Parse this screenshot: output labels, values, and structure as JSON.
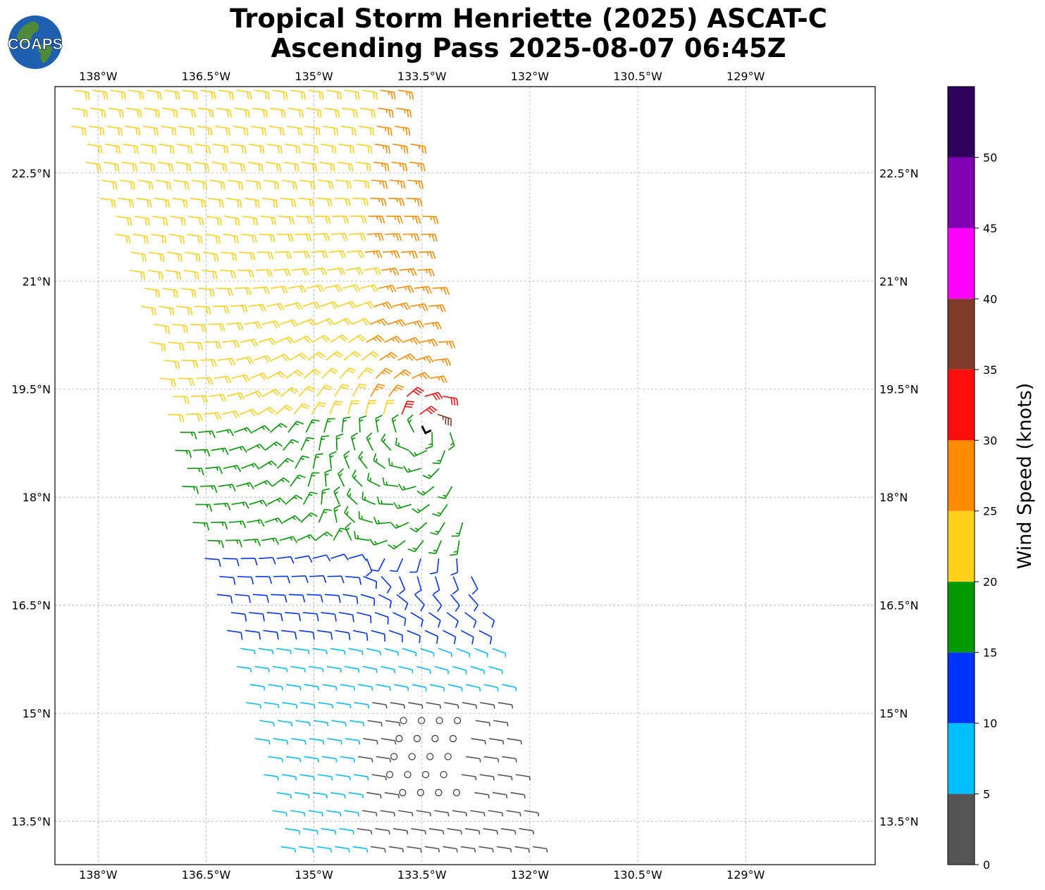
{
  "title": {
    "line1": "Tropical Storm Henriette (2025) ASCAT-C",
    "line2": "Ascending Pass 2025-08-07 06:45Z"
  },
  "logo": {
    "text": "COAPS",
    "icon": "globe-icon",
    "colors": {
      "ocean": "#1f5fb0",
      "land": "#4f8a3a",
      "text": "#ffffff"
    }
  },
  "map": {
    "lon_range": [
      -138.6,
      -127.2
    ],
    "lat_range": [
      12.9,
      23.7
    ],
    "lon_ticks": [
      {
        "value": -138.0,
        "label": "138°W"
      },
      {
        "value": -136.5,
        "label": "136.5°W"
      },
      {
        "value": -135.0,
        "label": "135°W"
      },
      {
        "value": -133.5,
        "label": "133.5°W"
      },
      {
        "value": -132.0,
        "label": "132°W"
      },
      {
        "value": -130.5,
        "label": "130.5°W"
      },
      {
        "value": -129.0,
        "label": "129°W"
      }
    ],
    "lat_ticks": [
      {
        "value": 22.5,
        "label": "22.5°N"
      },
      {
        "value": 21.0,
        "label": "21°N"
      },
      {
        "value": 19.5,
        "label": "19.5°N"
      },
      {
        "value": 18.0,
        "label": "18°N"
      },
      {
        "value": 16.5,
        "label": "16.5°N"
      },
      {
        "value": 15.0,
        "label": "15°N"
      },
      {
        "value": 13.5,
        "label": "13.5°N"
      }
    ],
    "gridlines": true,
    "storm_center": {
      "lon": -133.45,
      "lat": 18.93
    }
  },
  "colorbar": {
    "label": "Wind Speed (knots)",
    "ticks": [
      0,
      5,
      10,
      15,
      20,
      25,
      30,
      35,
      40,
      45,
      50
    ],
    "bins": [
      {
        "min": 0,
        "max": 5,
        "color": "#555555"
      },
      {
        "min": 5,
        "max": 10,
        "color": "#00bfff"
      },
      {
        "min": 10,
        "max": 15,
        "color": "#0033ff"
      },
      {
        "min": 15,
        "max": 20,
        "color": "#009900"
      },
      {
        "min": 20,
        "max": 25,
        "color": "#ffd11a"
      },
      {
        "min": 25,
        "max": 30,
        "color": "#ff8c00"
      },
      {
        "min": 30,
        "max": 35,
        "color": "#ff0d0d"
      },
      {
        "min": 35,
        "max": 40,
        "color": "#7f3b27"
      },
      {
        "min": 40,
        "max": 45,
        "color": "#ff00ff"
      },
      {
        "min": 45,
        "max": 50,
        "color": "#8000b3"
      },
      {
        "min": 50,
        "max": 55,
        "color": "#2e005c"
      }
    ]
  },
  "wind_field": {
    "swath": [
      {
        "lat": 23.7,
        "lon_west": -138.6,
        "lon_east": -133.7
      },
      {
        "lat": 21.0,
        "lon_west": -137.5,
        "lon_east": -133.35
      },
      {
        "lat": 19.5,
        "lon_west": -137.1,
        "lon_east": -133.15
      },
      {
        "lat": 18.0,
        "lon_west": -136.8,
        "lon_east": -133.0
      },
      {
        "lat": 16.5,
        "lon_west": -136.3,
        "lon_east": -132.6
      },
      {
        "lat": 15.0,
        "lon_west": -135.9,
        "lon_east": -132.3
      },
      {
        "lat": 12.9,
        "lon_west": -135.4,
        "lon_east": -131.9
      }
    ],
    "regions": [
      {
        "description": "north band",
        "lat_min": 22.0,
        "speed_kt": 18
      },
      {
        "description": "northwest yellow",
        "lat_min": 19.0,
        "speed_kt": 22
      },
      {
        "description": "east orange",
        "lat_min": 19.2,
        "lon_min": -134.3,
        "speed_kt": 27
      },
      {
        "description": "core red",
        "lat_min": 18.8,
        "lat_max": 19.6,
        "lon_min": -133.9,
        "speed_kt": 32
      },
      {
        "description": "core brown",
        "lat_min": 18.8,
        "lat_max": 19.3,
        "lon_min": -133.3,
        "speed_kt": 37
      },
      {
        "description": "west green",
        "lat_min": 16.8,
        "lat_max": 19.0,
        "speed_kt": 17
      },
      {
        "description": "blue band",
        "lat_min": 15.5,
        "lat_max": 17.2,
        "speed_kt": 12
      },
      {
        "description": "cyan south",
        "lat_min": 13.0,
        "lat_max": 16.0,
        "speed_kt": 7
      },
      {
        "description": "light winds",
        "lat_min": 12.9,
        "lat_max": 15.3,
        "lon_min": -134.4,
        "speed_kt": 3
      },
      {
        "description": "calm points",
        "lat_min": 13.8,
        "lat_max": 15.1,
        "lon_min": -134.0,
        "lon_max": -133.0,
        "speed_kt": 0
      }
    ],
    "circulation": "cyclonic (counter-clockwise) around storm center"
  }
}
